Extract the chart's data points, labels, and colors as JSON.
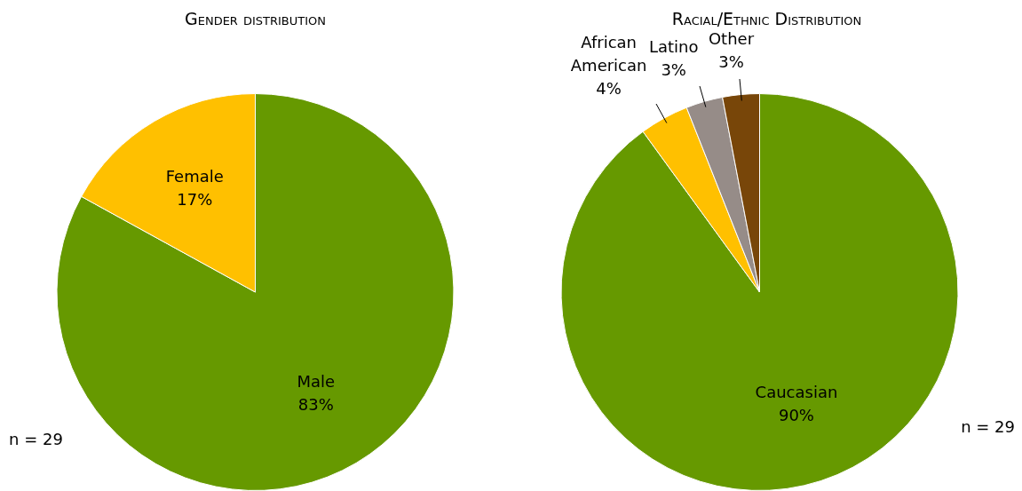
{
  "chart_data": [
    {
      "type": "pie",
      "title": "Gender distribution",
      "categories": [
        "Male",
        "Female"
      ],
      "values": [
        83,
        17
      ],
      "colors": [
        "#669900",
        "#ffc000"
      ],
      "value_labels": [
        "83%",
        "17%"
      ],
      "legend": false,
      "annotations": [
        "n = 29"
      ]
    },
    {
      "type": "pie",
      "title": "Racial/Ethnic Distribution",
      "categories": [
        "Caucasian",
        "African American",
        "Latino",
        "Other"
      ],
      "values": [
        90,
        4,
        3,
        3
      ],
      "colors": [
        "#669900",
        "#ffc000",
        "#968c88",
        "#784609"
      ],
      "value_labels": [
        "90%",
        "4%",
        "3%",
        "3%"
      ],
      "legend": false,
      "annotations": [
        "n = 29"
      ]
    }
  ]
}
